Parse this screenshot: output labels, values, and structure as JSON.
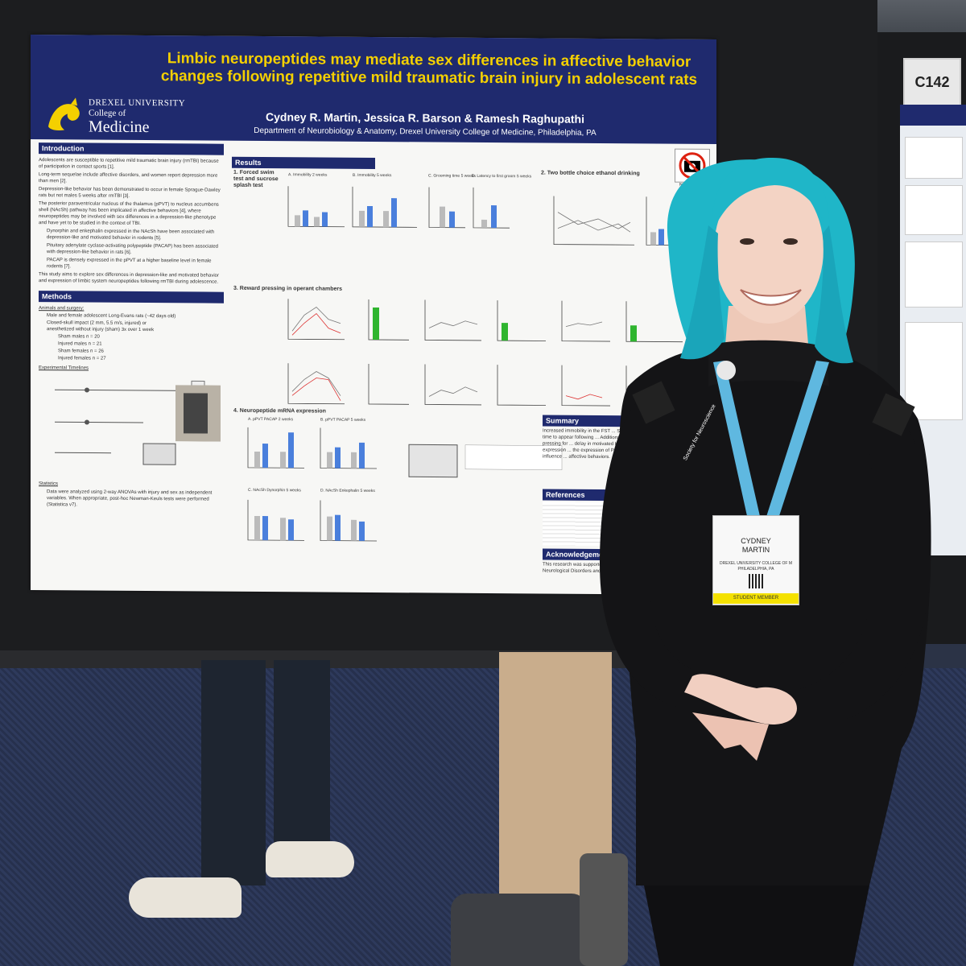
{
  "booth": {
    "label": "C142"
  },
  "poster": {
    "title": "Limbic neuropeptides may mediate sex differences in affective behavior changes following repetitive mild traumatic brain injury in adolescent rats",
    "authors": "Cydney R. Martin, Jessica R. Barson & Ramesh Raghupathi",
    "department": "Department of Neurobiology & Anatomy, Drexel University College of Medicine, Philadelphia, PA",
    "logo": {
      "university": "DREXEL UNIVERSITY",
      "college": "College of",
      "school": "Medicine"
    },
    "no_photos": "NO PHOTOS",
    "sections": {
      "introduction": "Introduction",
      "methods": "Methods",
      "results": "Results",
      "summary": "Summary",
      "references": "References",
      "acknowledgements": "Acknowledgements"
    },
    "intro_text": [
      "Adolescents are susceptible to repetitive mild traumatic brain injury (rmTBI) because of participation in contact sports [1].",
      "Long-term sequelae include affective disorders, and women report depression more than men [2].",
      "Depression-like behavior has been demonstrated to occur in female Sprague-Dawley rats but not males 5 weeks after rmTBI [3].",
      "The posterior paraventricular nucleus of the thalamus (pPVT) to nucleus accumbens shell (NAcSh) pathway has been implicated in affective behaviors [4], where neuropeptides may be involved with sex differences in a depression-like phenotype and have yet to be studied in the context of TBI.",
      "Dynorphin and enkephalin expressed in the NAcSh have been associated with depression-like and motivated behavior in rodents [5].",
      "Pituitary adenylate cyclase-activating polypeptide (PACAP) has been associated with depression-like behavior in rats [6].",
      "PACAP is densely expressed in the pPVT at a higher baseline level in female rodents [7].",
      "This study aims to explore sex differences in depression-like and motivated behavior and expression of limbic system neuropeptides following rmTBI during adolescence."
    ],
    "methods_text": [
      "Animals and surgery:",
      "Male and female adolescent Long-Evans rats (~42 days old)",
      "Closed-skull impact (2 mm, 5.5 m/s, injured) or anesthetized without injury (sham) 3x over 1 week",
      "Sham males n = 20",
      "Injured males n = 21",
      "Sham females n = 26",
      "Injured females n = 27",
      "Experimental Timelines",
      "Statistics",
      "Data were analyzed using 2-way ANOVAs with injury and sex as independent variables. When appropriate, post-hoc Newman-Keuls tests were performed (Statistica v7)."
    ],
    "results_headings": [
      "1. Forced swim test and sucrose splash test",
      "2. Two bottle choice ethanol drinking",
      "3. Reward pressing in operant chambers",
      "4. Neuropeptide mRNA expression"
    ],
    "figure_panels": [
      "A. Immobility 2 weeks",
      "B. Immobility 5 weeks",
      "C. Grooming time 5 weeks",
      "D. Latency to first groom 5 weeks",
      "A. pPVT PACAP 2 weeks",
      "B. pPVT PACAP 5 weeks",
      "C. NAcSh Dynorphin 5 weeks",
      "D. NAcSh Enkephalin 5 weeks"
    ],
    "summary_text": "Increased immobility in the FST ... SST 5 weeks after injury indicates ... take time to appear following ... Additionally, a reduction in ... subsequent lever pressing for ... delay in motivated behavior ... needed. Neuropeptide expression ... the expression of PACAP in ... NAcSh which may in turn influence ... affective behaviors.",
    "ack_text": "This research was supported by ... Alcohol Abuse and Alcoholism ... Neurological Disorders and Stroke"
  },
  "badge": {
    "first_name": "CYDNEY",
    "last_name": "MARTIN",
    "affiliation": "DREXEL UNIVERSITY COLLEGE OF M",
    "city": "PHILADELPHIA, PA",
    "type": "STUDENT MEMBER"
  },
  "lanyard_text": "Society for Neuroscience",
  "colors": {
    "poster_header": "#1f2a6e",
    "title_yellow": "#f4d000",
    "hair": "#1fb6c8",
    "lanyard": "#5fb8e0",
    "badge_stripe": "#f4e100"
  }
}
